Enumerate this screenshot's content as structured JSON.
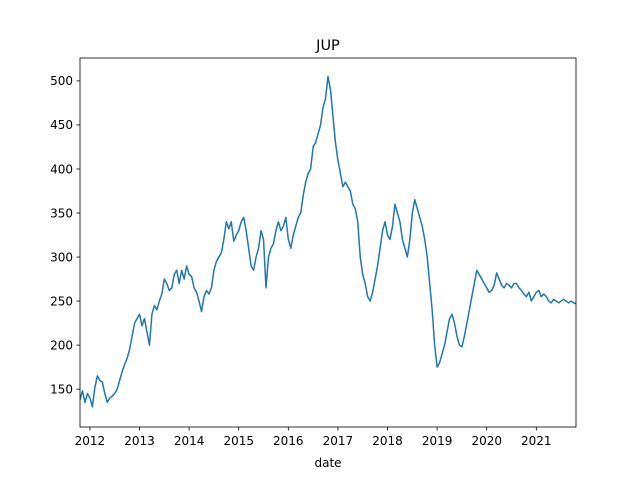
{
  "chart_data": {
    "type": "line",
    "title": "JUP",
    "xlabel": "date",
    "ylabel": "",
    "xlim": [
      2011.8,
      2021.8
    ],
    "ylim": [
      107,
      526
    ],
    "x_ticks": [
      2012,
      2013,
      2014,
      2015,
      2016,
      2017,
      2018,
      2019,
      2020,
      2021
    ],
    "x_tick_labels": [
      "2012",
      "2013",
      "2014",
      "2015",
      "2016",
      "2017",
      "2018",
      "2019",
      "2020",
      "2021"
    ],
    "y_ticks": [
      150,
      200,
      250,
      300,
      350,
      400,
      450,
      500
    ],
    "y_tick_labels": [
      "150",
      "200",
      "250",
      "300",
      "350",
      "400",
      "450",
      "500"
    ],
    "grid": false,
    "series_color": "#1f77b4",
    "series": [
      {
        "x": [
          2011.8,
          2011.85,
          2011.9,
          2011.95,
          2012.0,
          2012.05,
          2012.1,
          2012.15,
          2012.2,
          2012.25,
          2012.3,
          2012.35,
          2012.4,
          2012.45,
          2012.5,
          2012.55,
          2012.6,
          2012.65,
          2012.7,
          2012.75,
          2012.8,
          2012.85,
          2012.9,
          2012.95,
          2013.0,
          2013.05,
          2013.1,
          2013.15,
          2013.2,
          2013.25,
          2013.3,
          2013.35,
          2013.4,
          2013.45,
          2013.5,
          2013.55,
          2013.6,
          2013.65,
          2013.7,
          2013.75,
          2013.8,
          2013.85,
          2013.9,
          2013.95,
          2014.0,
          2014.05,
          2014.1,
          2014.15,
          2014.2,
          2014.25,
          2014.3,
          2014.35,
          2014.4,
          2014.45,
          2014.5,
          2014.55,
          2014.6,
          2014.65,
          2014.7,
          2014.75,
          2014.8,
          2014.85,
          2014.9,
          2014.95,
          2015.0,
          2015.05,
          2015.1,
          2015.15,
          2015.2,
          2015.25,
          2015.3,
          2015.35,
          2015.4,
          2015.45,
          2015.5,
          2015.55,
          2015.6,
          2015.65,
          2015.7,
          2015.75,
          2015.8,
          2015.85,
          2015.9,
          2015.95,
          2016.0,
          2016.05,
          2016.1,
          2016.15,
          2016.2,
          2016.25,
          2016.3,
          2016.35,
          2016.4,
          2016.45,
          2016.5,
          2016.55,
          2016.6,
          2016.65,
          2016.7,
          2016.75,
          2016.8,
          2016.85,
          2016.9,
          2016.95,
          2017.0,
          2017.05,
          2017.1,
          2017.15,
          2017.2,
          2017.25,
          2017.3,
          2017.35,
          2017.4,
          2017.45,
          2017.5,
          2017.55,
          2017.6,
          2017.65,
          2017.7,
          2017.75,
          2017.8,
          2017.85,
          2017.9,
          2017.95,
          2018.0,
          2018.05,
          2018.1,
          2018.15,
          2018.2,
          2018.25,
          2018.3,
          2018.35,
          2018.4,
          2018.45,
          2018.5,
          2018.55,
          2018.6,
          2018.65,
          2018.7,
          2018.75,
          2018.8,
          2018.85,
          2018.9,
          2018.95,
          2019.0,
          2019.05,
          2019.1,
          2019.15,
          2019.2,
          2019.25,
          2019.3,
          2019.35,
          2019.4,
          2019.45,
          2019.5,
          2019.55,
          2019.6,
          2019.65,
          2019.7,
          2019.75,
          2019.8,
          2019.85,
          2019.9,
          2019.95,
          2020.0,
          2020.05,
          2020.1,
          2020.15,
          2020.2,
          2020.25,
          2020.3,
          2020.35,
          2020.4,
          2020.45,
          2020.5,
          2020.55,
          2020.6,
          2020.65,
          2020.7,
          2020.75,
          2020.8,
          2020.85,
          2020.9,
          2020.95,
          2021.0,
          2021.05,
          2021.1,
          2021.15,
          2021.2,
          2021.25,
          2021.3,
          2021.35,
          2021.4,
          2021.45,
          2021.5,
          2021.55,
          2021.6,
          2021.65,
          2021.7,
          2021.75,
          2021.8
        ],
        "values": [
          138,
          148,
          135,
          145,
          140,
          130,
          152,
          165,
          160,
          158,
          145,
          135,
          140,
          142,
          145,
          150,
          160,
          170,
          178,
          185,
          195,
          210,
          225,
          230,
          235,
          222,
          230,
          215,
          200,
          235,
          245,
          240,
          250,
          258,
          275,
          270,
          262,
          265,
          280,
          285,
          270,
          285,
          275,
          290,
          280,
          278,
          265,
          260,
          250,
          238,
          255,
          262,
          258,
          265,
          285,
          295,
          300,
          305,
          320,
          340,
          332,
          340,
          318,
          325,
          330,
          340,
          345,
          330,
          310,
          290,
          285,
          300,
          310,
          330,
          320,
          265,
          300,
          310,
          315,
          330,
          340,
          330,
          335,
          345,
          320,
          310,
          325,
          335,
          345,
          350,
          370,
          385,
          395,
          400,
          425,
          430,
          440,
          450,
          470,
          480,
          505,
          490,
          460,
          430,
          410,
          395,
          380,
          385,
          380,
          375,
          360,
          355,
          340,
          300,
          280,
          270,
          255,
          250,
          260,
          275,
          290,
          310,
          330,
          340,
          325,
          320,
          335,
          360,
          350,
          340,
          320,
          310,
          300,
          320,
          350,
          365,
          355,
          345,
          335,
          320,
          300,
          270,
          240,
          200,
          175,
          180,
          190,
          200,
          215,
          230,
          235,
          225,
          210,
          200,
          198,
          210,
          225,
          240,
          255,
          270,
          285,
          280,
          275,
          270,
          265,
          260,
          262,
          268,
          282,
          275,
          268,
          265,
          270,
          268,
          265,
          270,
          270,
          265,
          262,
          258,
          255,
          260,
          250,
          255,
          260,
          262,
          255,
          258,
          255,
          250,
          248,
          252,
          250,
          248,
          250,
          252,
          250,
          248,
          250,
          248,
          247
        ]
      }
    ]
  }
}
